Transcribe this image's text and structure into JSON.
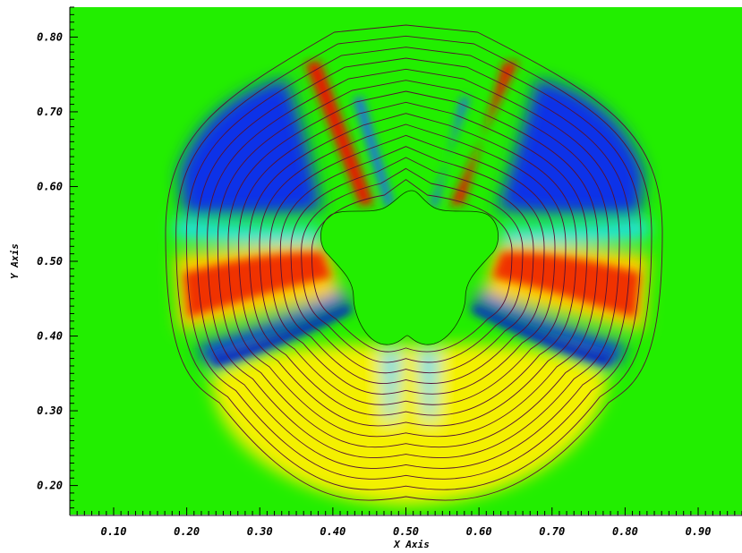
{
  "chart_data": {
    "type": "heatmap",
    "title": "",
    "xlabel": "X Axis",
    "ylabel": "Y Axis",
    "xlim": [
      0.04,
      0.96
    ],
    "ylim": [
      0.16,
      0.84
    ],
    "x_ticks": [
      "0.10",
      "0.20",
      "0.30",
      "0.40",
      "0.50",
      "0.60",
      "0.70",
      "0.80",
      "0.90"
    ],
    "y_ticks": [
      "0.20",
      "0.30",
      "0.40",
      "0.50",
      "0.60",
      "0.70",
      "0.80"
    ],
    "x_tick_values": [
      0.1,
      0.2,
      0.3,
      0.4,
      0.5,
      0.6,
      0.7,
      0.8,
      0.9
    ],
    "y_tick_values": [
      0.2,
      0.3,
      0.4,
      0.5,
      0.6,
      0.7,
      0.8
    ],
    "colormap": [
      "#0000ff",
      "#00ffff",
      "#00ff00",
      "#ffff00",
      "#ff0000"
    ],
    "background_color": "#22ee00",
    "obstacle": {
      "shape": "three-lobed",
      "center": [
        0.5,
        0.49
      ],
      "lobes": 3
    },
    "contour_lines": {
      "count": 15,
      "color": "#551133"
    },
    "grid": false,
    "legend": "none"
  }
}
